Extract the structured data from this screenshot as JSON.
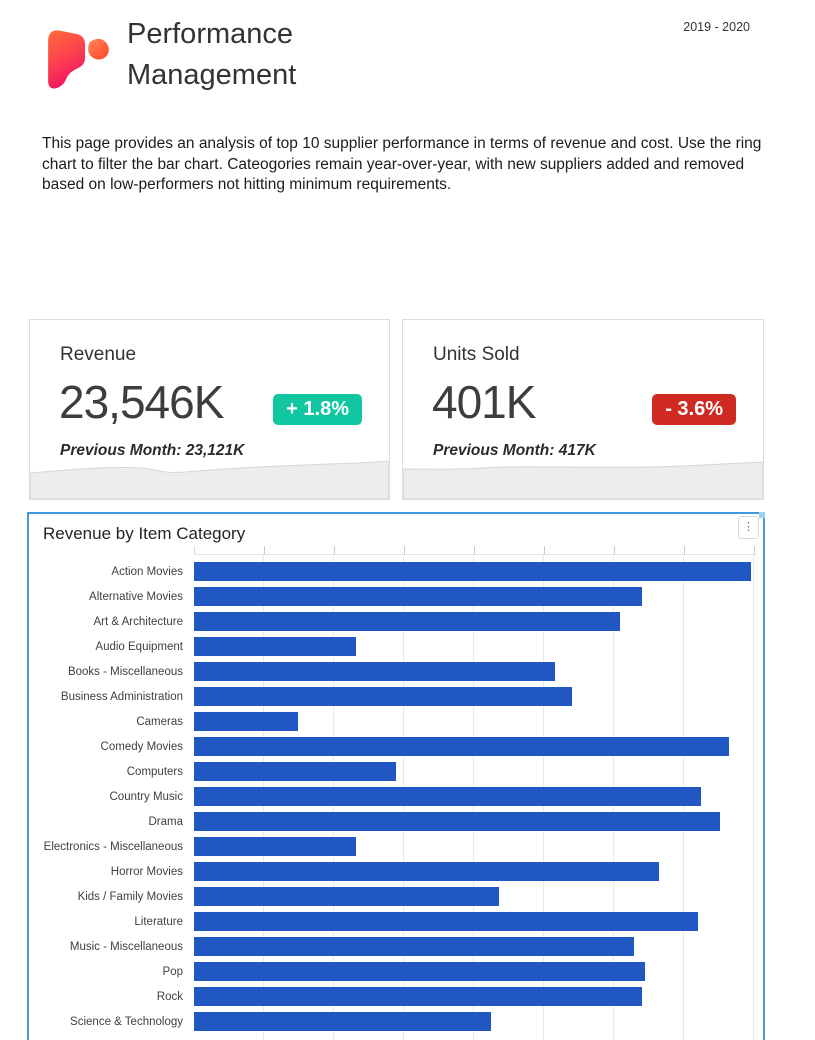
{
  "header": {
    "title_line1": "Performance",
    "title_line2": "Management",
    "date_range": "2019 - 2020"
  },
  "description": "This page provides an analysis of top 10 supplier performance in terms of revenue and cost. Use the ring chart to filter the bar chart. Cateogories remain year-over-year, with new suppliers added and removed based on low-performers not hitting minimum requirements.",
  "kpi_cards": [
    {
      "title": "Revenue",
      "value": "23,546K",
      "delta_label": "+ 1.8%",
      "delta_direction": "up",
      "delta_color": "#10c7a2",
      "previous_label": "Previous Month: 23,121K"
    },
    {
      "title": "Units Sold",
      "value": "401K",
      "delta_label": "- 3.6%",
      "delta_direction": "down",
      "delta_color": "#ce2a21",
      "previous_label": "Previous Month: 417K"
    }
  ],
  "chart": {
    "title": "Revenue by Item Category",
    "menu_icon_glyph": "⋮"
  },
  "chart_data": {
    "type": "bar",
    "orientation": "horizontal",
    "title": "Revenue by Item Category",
    "xlabel": "",
    "ylabel": "",
    "grid": true,
    "legend": false,
    "axis_value_labels_visible": false,
    "bar_color": "#2057c3",
    "gridline_color": "#e8e8e8",
    "categories": [
      "Action Movies",
      "Alternative Movies",
      "Art & Architecture",
      "Audio Equipment",
      "Books - Miscellaneous",
      "Business Administration",
      "Cameras",
      "Comedy Movies",
      "Computers",
      "Country Music",
      "Drama",
      "Electronics - Miscellaneous",
      "Horror Movies",
      "Kids / Family Movies",
      "Literature",
      "Music - Miscellaneous",
      "Pop",
      "Rock",
      "Science & Technology"
    ],
    "values_pct_of_axis_max": [
      99.5,
      80,
      76,
      29,
      64.5,
      67.5,
      18.5,
      95.5,
      36,
      90.5,
      94,
      29,
      83,
      54.5,
      90,
      78.5,
      80.5,
      80,
      53
    ],
    "note": "Value axis labels are cut off below the visible area; values are expressed as percent of the plotted axis maximum (8 unlabeled gridlines, bar chart truncated at bottom of screenshot)."
  }
}
